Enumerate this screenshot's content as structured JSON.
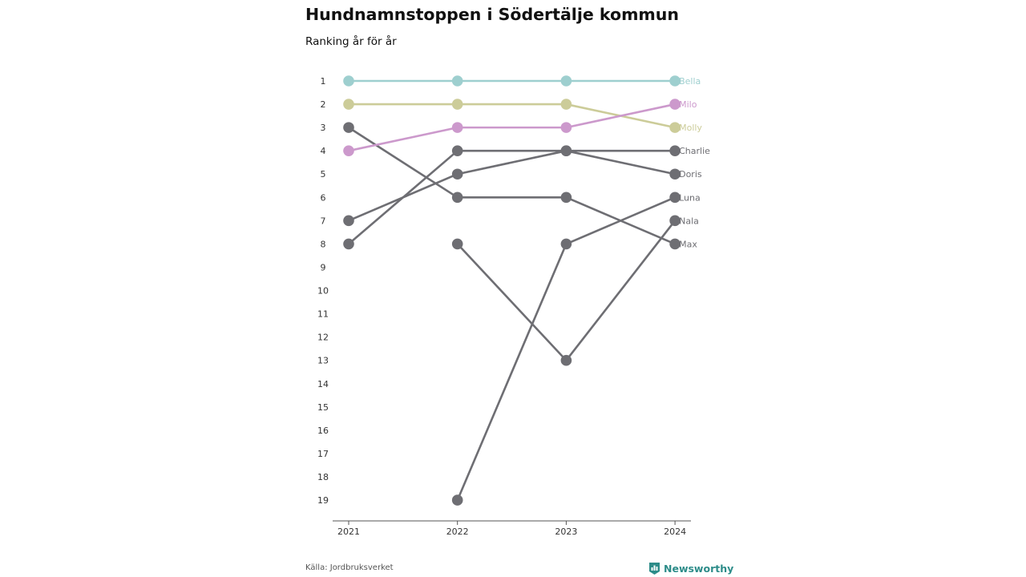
{
  "title": "Hundnamnstoppen i Södertälje kommun",
  "subtitle": "Ranking år för år",
  "source": "Källa: Jordbruksverket",
  "brand": "Newsworthy",
  "colors": {
    "highlight_bella": "#9ecfcf",
    "highlight_milo": "#cc99cc",
    "highlight_molly": "#cccc99",
    "other": "#6e6e73",
    "brand": "#2d8c89"
  },
  "chart_data": {
    "type": "line",
    "x": [
      "2021",
      "2022",
      "2023",
      "2024"
    ],
    "y_ticks": [
      "1",
      "2",
      "3",
      "4",
      "5",
      "6",
      "7",
      "8",
      "9",
      "10",
      "11",
      "12",
      "13",
      "14",
      "15",
      "16",
      "17",
      "18",
      "19"
    ],
    "ylim": [
      1,
      19
    ],
    "y_reversed": true,
    "series": [
      {
        "name": "Max",
        "values": [
          3,
          6,
          6,
          8
        ],
        "color": "#6e6e73"
      },
      {
        "name": "Doris",
        "values": [
          7,
          5,
          4,
          5
        ],
        "color": "#6e6e73"
      },
      {
        "name": "Charlie",
        "values": [
          8,
          4,
          4,
          4
        ],
        "color": "#6e6e73"
      },
      {
        "name": "Luna",
        "values": [
          null,
          19,
          8,
          6
        ],
        "color": "#6e6e73"
      },
      {
        "name": "Nala",
        "values": [
          null,
          8,
          13,
          7
        ],
        "color": "#6e6e73"
      },
      {
        "name": "Molly",
        "values": [
          2,
          2,
          2,
          3
        ],
        "color": "#cccc99"
      },
      {
        "name": "Milo",
        "values": [
          4,
          3,
          3,
          2
        ],
        "color": "#cc99cc"
      },
      {
        "name": "Bella",
        "values": [
          1,
          1,
          1,
          1
        ],
        "color": "#9ecfcf"
      }
    ]
  }
}
